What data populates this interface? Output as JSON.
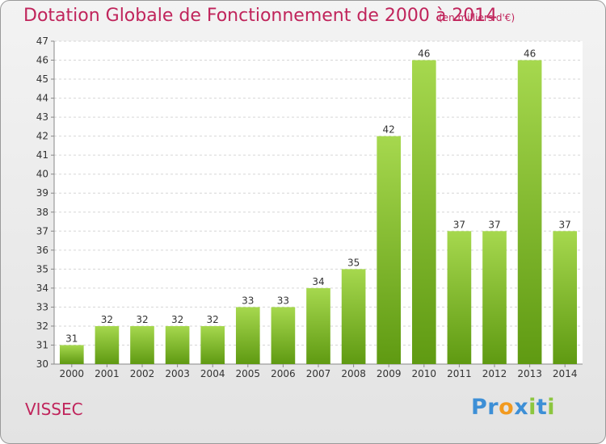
{
  "title": "Dotation Globale de Fonctionnement de 2000 à 2014",
  "subtitle": "(en milliers d'€)",
  "commune": "VISSEC",
  "logo": {
    "letters": [
      "P",
      "r",
      "o",
      "x",
      "i",
      "t",
      "i"
    ],
    "colors": [
      "#3d8fd6",
      "#3d8fd6",
      "#f29a1f",
      "#3d8fd6",
      "#8cc63f",
      "#3d8fd6",
      "#8cc63f"
    ]
  },
  "colors": {
    "bar_top": "#a6d84e",
    "bar_bottom": "#5f9a12",
    "accent": "#c0245b"
  },
  "chart_data": {
    "type": "bar",
    "title": "Dotation Globale de Fonctionnement de 2000 à 2014",
    "subtitle": "(en milliers d'€)",
    "categories": [
      "2000",
      "2001",
      "2002",
      "2003",
      "2004",
      "2005",
      "2006",
      "2007",
      "2008",
      "2009",
      "2010",
      "2011",
      "2012",
      "2013",
      "2014"
    ],
    "values": [
      31,
      32,
      32,
      32,
      32,
      33,
      33,
      34,
      35,
      42,
      46,
      37,
      37,
      46,
      37
    ],
    "ylim": [
      30,
      47
    ],
    "yticks": [
      30,
      31,
      32,
      33,
      34,
      35,
      36,
      37,
      38,
      39,
      40,
      41,
      42,
      43,
      44,
      45,
      46,
      47
    ],
    "grid": true,
    "xlabel": "",
    "ylabel": ""
  }
}
